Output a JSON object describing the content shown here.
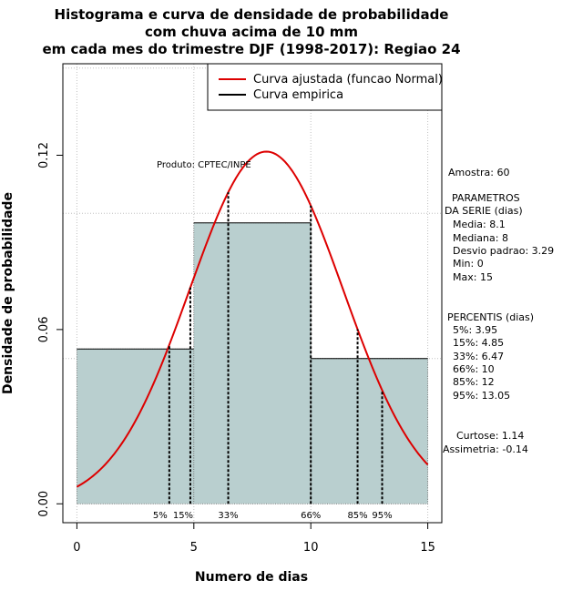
{
  "chart_data": {
    "type": "histogram",
    "title_lines": [
      "Histograma e curva de densidade de probabilidade",
      "com chuva acima de 10 mm",
      "em cada mes do trimestre DJF (1998-2017): Regiao 24"
    ],
    "xlabel": "Numero de dias",
    "ylabel": "Densidade de probabilidade",
    "xlim": [
      -0.6,
      15.6
    ],
    "ylim": [
      -0.0065,
      0.1515
    ],
    "x_ticks": [
      0,
      5,
      10,
      15
    ],
    "x_tick_labels": [
      "0",
      "5",
      "10",
      "15"
    ],
    "y_ticks": [
      0.0,
      0.06,
      0.12
    ],
    "y_tick_labels": [
      "0.00",
      "0.06",
      "0.12"
    ],
    "grid_x": [
      0,
      5,
      10,
      15
    ],
    "grid_y": [
      0.05,
      0.1,
      0.15
    ],
    "bins": [
      {
        "from": 0,
        "to": 5,
        "density": 0.0533
      },
      {
        "from": 5,
        "to": 10,
        "density": 0.0967
      },
      {
        "from": 10,
        "to": 15,
        "density": 0.05
      }
    ],
    "normal_fit": {
      "mean": 8.1,
      "sd": 3.29,
      "from": 0,
      "to": 15
    },
    "percentiles": [
      {
        "label": "5%",
        "value": 3.95
      },
      {
        "label": "15%",
        "value": 4.85
      },
      {
        "label": "33%",
        "value": 6.47
      },
      {
        "label": "66%",
        "value": 10
      },
      {
        "label": "85%",
        "value": 12
      },
      {
        "label": "95%",
        "value": 13.05
      }
    ],
    "legend": {
      "position": "top-right",
      "entries": [
        {
          "label": "Curva ajustada (funcao Normal)",
          "color": "#dd0000"
        },
        {
          "label": "Curva empirica",
          "color": "#000000"
        }
      ]
    },
    "annotation": "Produto: CPTEC/INPE",
    "bar_color": "#b9cfcf",
    "curve_color": "#dd0000"
  },
  "side_panel": {
    "sample": "Amostra: 60",
    "params_title_1": "PARAMETROS",
    "params_title_2": "DA SERIE (dias)",
    "media": "Media: 8.1",
    "mediana": "Mediana: 8",
    "desvio": "Desvio padrao: 3.29",
    "min": "Min: 0",
    "max": "Max: 15",
    "percentis_title": "PERCENTIS (dias)",
    "p5": "5%: 3.95",
    "p15": "15%: 4.85",
    "p33": "33%: 6.47",
    "p66": "66%: 10",
    "p85": "85%: 12",
    "p95": "95%: 13.05",
    "curtose": "Curtose: 1.14",
    "assimetria": "Assimetria: -0.14"
  }
}
